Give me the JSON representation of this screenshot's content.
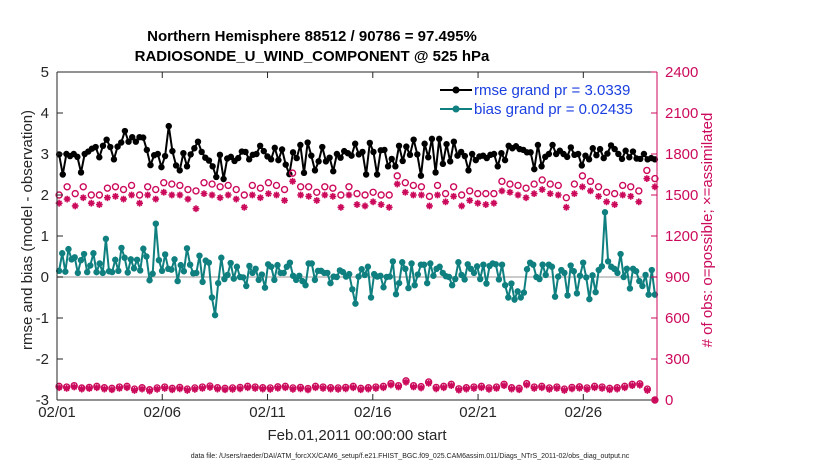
{
  "chart_data": {
    "type": "line",
    "title": "Northern Hemisphere 88512 / 90786 = 97.495%",
    "subtitle": "RADIOSONDE_U_WIND_COMPONENT @ 525 hPa",
    "xlabel": "Feb.01,2011 00:00:00 start",
    "ylabel": "rmse and bias (model - observation)",
    "ylabel_right": "# of obs: o=possible; ×=assimilated",
    "x_ticks": [
      "02/01",
      "02/06",
      "02/11",
      "02/16",
      "02/21",
      "02/26"
    ],
    "x_tick_days": [
      0,
      5,
      10,
      15,
      20,
      25
    ],
    "xlim": [
      0,
      28.5
    ],
    "ylim": [
      -3,
      5
    ],
    "y_ticks": [
      "5",
      "4",
      "3",
      "2",
      "1",
      "0",
      "-1",
      "-2",
      "-3"
    ],
    "y_tick_values": [
      5,
      4,
      3,
      2,
      1,
      0,
      -1,
      -2,
      -3
    ],
    "ylim_right": [
      0,
      2400
    ],
    "y_ticks_right": [
      "2400",
      "2100",
      "1800",
      "1500",
      "1200",
      "900",
      "600",
      "300",
      "0"
    ],
    "y_tick_values_right": [
      2400,
      2100,
      1800,
      1500,
      1200,
      900,
      600,
      300,
      0
    ],
    "x_step_days": 0.25,
    "series": [
      {
        "name": "rmse grand pr = 3.0339",
        "color": "#000000",
        "axis": "left",
        "values": [
          2.99,
          2.5,
          3.0,
          2.95,
          3.0,
          2.93,
          2.55,
          3.0,
          3.06,
          3.13,
          3.17,
          2.92,
          3.2,
          3.35,
          3.17,
          2.87,
          3.18,
          3.28,
          3.56,
          3.3,
          3.41,
          3.3,
          3.41,
          3.4,
          3.1,
          2.73,
          2.97,
          3.0,
          2.68,
          2.95,
          3.68,
          3.07,
          2.72,
          2.6,
          3.02,
          2.7,
          2.99,
          3.14,
          3.3,
          3.05,
          2.91,
          2.84,
          2.7,
          2.44,
          2.98,
          2.39,
          2.89,
          2.93,
          2.83,
          2.9,
          3.06,
          3.05,
          2.87,
          2.98,
          3.0,
          3.2,
          3.07,
          2.94,
          2.87,
          3.15,
          2.85,
          3.11,
          2.74,
          2.51,
          3.04,
          2.9,
          3.22,
          2.54,
          3.28,
          2.96,
          2.6,
          2.82,
          3.17,
          2.82,
          2.91,
          2.58,
          3.0,
          2.91,
          3.07,
          3.02,
          2.96,
          3.25,
          2.99,
          3.05,
          2.5,
          3.27,
          3.05,
          2.5,
          3.09,
          3.1,
          2.7,
          2.88,
          2.7,
          3.2,
          2.83,
          3.18,
          2.98,
          3.35,
          2.99,
          2.47,
          3.25,
          2.92,
          3.37,
          2.55,
          3.37,
          2.76,
          3.24,
          2.82,
          3.3,
          2.96,
          3.05,
          2.95,
          2.6,
          3.0,
          2.85,
          2.94,
          2.96,
          2.9,
          2.98,
          3.0,
          2.7,
          3.02,
          2.85,
          3.2,
          3.14,
          3.19,
          3.12,
          3.1,
          3.04,
          3.04,
          2.63,
          3.22,
          2.7,
          2.93,
          3.0,
          3.22,
          3.0,
          3.08,
          3.0,
          2.93,
          3.16,
          2.98,
          3.0,
          2.72,
          2.96,
          2.87,
          3.14,
          2.97,
          3.12,
          2.9,
          3.01,
          3.21,
          3.12,
          3.0,
          2.88,
          3.08,
          2.92,
          3.06,
          2.89,
          2.88,
          3.0,
          2.87,
          2.9,
          2.87
        ]
      },
      {
        "name": "bias grand pr = 0.02435",
        "color": "#0f7f7f",
        "axis": "left",
        "values": [
          0.15,
          0.58,
          0.13,
          0.68,
          0.43,
          0.48,
          0.1,
          0.41,
          0.56,
          0.12,
          0.28,
          0.58,
          0.12,
          0.33,
          0.1,
          0.93,
          0.14,
          0.12,
          0.42,
          0.15,
          0.71,
          0.47,
          0.11,
          0.43,
          0.21,
          0.42,
          0.16,
          0.69,
          0.5,
          -0.08,
          0.08,
          1.3,
          0.41,
          0.15,
          0.55,
          0.2,
          0.18,
          0.43,
          -0.1,
          0.29,
          0.14,
          0.7,
          0.3,
          0.09,
          0.1,
          0.52,
          -0.12,
          0.4,
          0.35,
          -0.5,
          -0.93,
          -0.15,
          0.47,
          -0.05,
          0.05,
          0.34,
          -0.04,
          0.25,
          0.0,
          -0.01,
          -0.22,
          0.27,
          0.1,
          0.2,
          -0.07,
          0.06,
          -0.26,
          0.31,
          0.25,
          -0.07,
          0.29,
          0.1,
          0.1,
          0.25,
          0.35,
          0.03,
          -0.07,
          0.03,
          -0.1,
          -0.2,
          0.33,
          0.33,
          -0.07,
          0.15,
          0.15,
          0.1,
          0.1,
          -0.15,
          0.01,
          0.0,
          0.16,
          0.12,
          0.01,
          0.07,
          -0.3,
          -0.65,
          0.01,
          0.19,
          0.05,
          0.25,
          -0.5,
          0.07,
          0.01,
          0.03,
          -0.25,
          0.0,
          0.01,
          0.38,
          -0.42,
          -0.15,
          0.36,
          0.2,
          -0.27,
          0.33,
          -0.2,
          0.06,
          0.3,
          0.3,
          -0.15,
          0.33,
          0.03,
          0.2,
          0.25,
          0.1,
          0.02,
          0.0,
          -0.2,
          -0.05,
          0.36,
          0.05,
          -0.06,
          0.31,
          0.2,
          0.1,
          0.26,
          -0.05,
          0.3,
          -0.16,
          0.27,
          0.33,
          0.31,
          -0.06,
          0.3,
          -0.2,
          -0.5,
          -0.16,
          -0.55,
          -0.35,
          -0.5,
          -0.38,
          0.19,
          0.35,
          0.3,
          0.0,
          -0.05,
          0.3,
          0.05,
          0.3,
          0.25,
          -0.48,
          0.01,
          0.17,
          0.1,
          -0.45,
          0.28,
          0.14,
          -0.4,
          0.03,
          0.35,
          -0.01,
          -0.54,
          0.04,
          -0.37,
          0.17,
          0.26,
          1.58,
          0.38,
          0.25,
          0.2,
          0.1,
          0.56,
          0.0,
          0.2,
          -0.28,
          0.2,
          0.14,
          -0.1,
          -0.22,
          0.05,
          -0.43,
          0.17,
          -0.43
        ]
      },
      {
        "name": "obs possible (o)",
        "color": "#cc0a5c",
        "axis": "right",
        "values": [
          1500,
          1560,
          1510,
          1560,
          1500,
          1500,
          1550,
          1560,
          1540,
          1570,
          1500,
          1560,
          1540,
          1590,
          1580,
          1570,
          1540,
          1530,
          1590,
          1580,
          1560,
          1570,
          1540,
          1500,
          1570,
          1550,
          1590,
          1570,
          1540,
          1660,
          1560,
          1560,
          1520,
          1560,
          1550,
          1500,
          1560,
          1510,
          1500,
          1520,
          1500,
          1500,
          1640,
          1590,
          1570,
          1560,
          1490,
          1570,
          1510,
          1560,
          1500,
          1530,
          1510,
          1510,
          1510,
          1600,
          1580,
          1570,
          1550,
          1580,
          1610,
          1580,
          1570,
          1480,
          1580,
          1640,
          1600,
          1560,
          1520,
          1510,
          1570,
          1560,
          1530,
          1680,
          1620
        ]
      },
      {
        "name": "obs assimilated (×)",
        "color": "#cc0a5c",
        "axis": "right",
        "values": [
          1440,
          1470,
          1420,
          1480,
          1440,
          1430,
          1480,
          1490,
          1470,
          1500,
          1440,
          1500,
          1470,
          1520,
          1500,
          1500,
          1470,
          1400,
          1510,
          1500,
          1480,
          1500,
          1470,
          1410,
          1500,
          1480,
          1510,
          1500,
          1460,
          1600,
          1500,
          1490,
          1460,
          1500,
          1490,
          1410,
          1500,
          1430,
          1420,
          1450,
          1430,
          1410,
          1580,
          1520,
          1500,
          1500,
          1420,
          1500,
          1450,
          1490,
          1420,
          1460,
          1440,
          1430,
          1440,
          1530,
          1520,
          1500,
          1480,
          1510,
          1540,
          1510,
          1500,
          1410,
          1510,
          1560,
          1530,
          1490,
          1450,
          1430,
          1500,
          1490,
          1450,
          1620,
          1560
        ]
      },
      {
        "name": "obs possible low (o)",
        "color": "#cc0a5c",
        "axis": "right",
        "values": [
          100,
          95,
          105,
          88,
          92,
          100,
          90,
          85,
          95,
          100,
          80,
          90,
          75,
          88,
          95,
          85,
          92,
          80,
          88,
          95,
          102,
          90,
          85,
          88,
          92,
          100,
          95,
          90,
          88,
          96,
          100,
          88,
          92,
          84,
          100,
          95,
          90,
          88,
          92,
          100,
          85,
          90,
          95,
          100,
          120,
          105,
          140,
          105,
          98,
          132,
          92,
          100,
          115,
          82,
          90,
          95,
          100,
          88,
          95,
          115,
          90,
          85,
          120,
          95,
          100,
          88,
          95,
          80,
          92,
          96,
          88,
          100,
          95,
          85,
          90,
          100,
          115,
          118,
          80,
          0
        ]
      },
      {
        "name": "obs assimilated low (×)",
        "color": "#cc0a5c",
        "axis": "right",
        "values": [
          90,
          85,
          95,
          80,
          84,
          90,
          80,
          75,
          85,
          90,
          70,
          80,
          65,
          78,
          85,
          75,
          82,
          70,
          78,
          85,
          92,
          80,
          75,
          78,
          82,
          90,
          85,
          80,
          78,
          86,
          90,
          78,
          82,
          74,
          90,
          85,
          80,
          78,
          82,
          90,
          75,
          80,
          85,
          90,
          110,
          95,
          130,
          95,
          88,
          122,
          82,
          90,
          105,
          72,
          80,
          85,
          90,
          78,
          85,
          105,
          80,
          75,
          110,
          85,
          90,
          78,
          85,
          70,
          82,
          86,
          78,
          90,
          85,
          75,
          80,
          90,
          105,
          108,
          70,
          0
        ]
      }
    ],
    "legend": [
      "rmse grand pr = 3.0339",
      "bias grand pr = 0.02435"
    ],
    "legend_position": "top-right",
    "footer": "data file: /Users/raeder/DAI/ATM_forcXX/CAM6_setup/f.e21.FHIST_BGC.f09_025.CAM6assim.011/Diags_NTrS_2011-02/obs_diag_output.nc",
    "colors": {
      "rmse": "#000000",
      "bias": "#0f7f7f",
      "obs": "#cc0a5c",
      "zero_line": "#b8b8b8",
      "legend_text": "#1a3fe0"
    }
  }
}
